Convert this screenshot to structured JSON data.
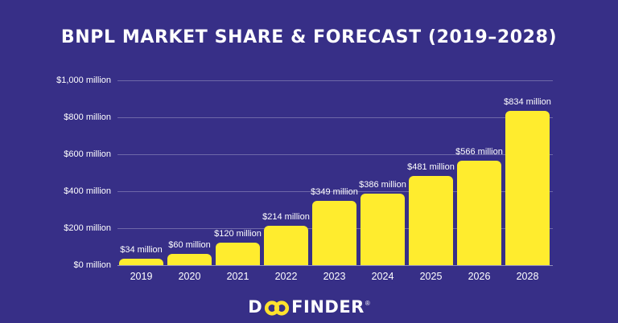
{
  "title": "BNPL MARKET SHARE & FORECAST (2019–2028)",
  "colors": {
    "background": "#372F87",
    "bar": "#FFEC2E",
    "text": "#FFFFFF",
    "gridline": "rgba(255,255,255,0.28)",
    "baseline": "rgba(255,255,255,0.45)",
    "logo_accent": "#FFE22E"
  },
  "chart_data": {
    "type": "bar",
    "title": "BNPL MARKET SHARE & FORECAST (2019–2028)",
    "categories": [
      "2019",
      "2020",
      "2021",
      "2022",
      "2023",
      "2024",
      "2025",
      "2026",
      "2028"
    ],
    "values": [
      34,
      60,
      120,
      214,
      349,
      386,
      481,
      566,
      834
    ],
    "value_labels": [
      "$34 million",
      "$60 million",
      "$120 million",
      "$214 million",
      "$349 million",
      "$386 million",
      "$481 million",
      "$566 million",
      "$834 million"
    ],
    "xlabel": "",
    "ylabel": "",
    "ylim": [
      0,
      1000
    ],
    "grid": true,
    "legend": false,
    "y_ticks": [
      {
        "value": 1000,
        "label": "$1,000 million"
      },
      {
        "value": 800,
        "label": "$800 million"
      },
      {
        "value": 600,
        "label": "$600 million"
      },
      {
        "value": 400,
        "label": "$400 million"
      },
      {
        "value": 200,
        "label": "$200 million"
      },
      {
        "value": 0,
        "label": "$0 million"
      }
    ]
  },
  "logo": {
    "d": "D",
    "finder": "FINDER",
    "registered": "®"
  }
}
